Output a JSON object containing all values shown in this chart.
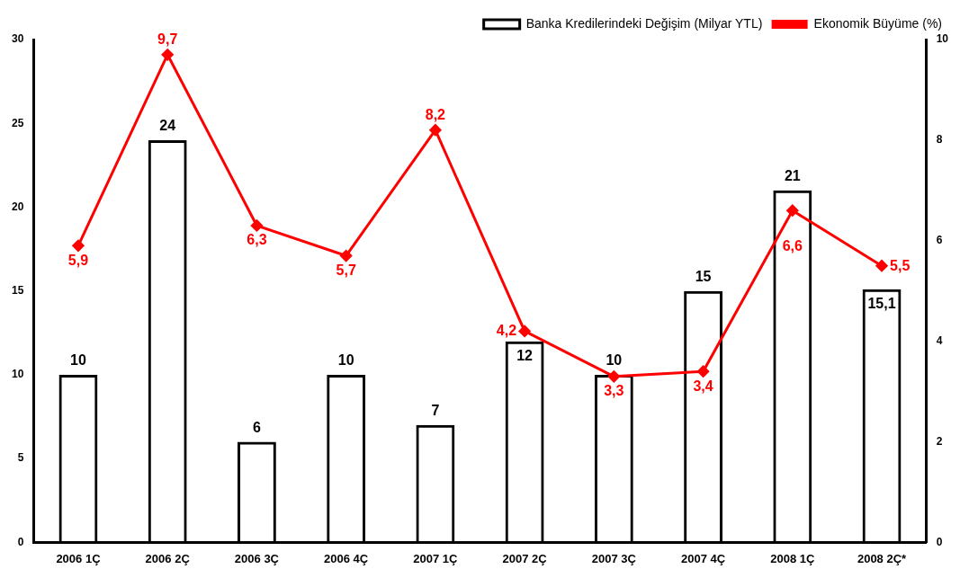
{
  "chart_data": {
    "type": "bar",
    "categories": [
      "2006 1Ç",
      "2006 2Ç",
      "2006 3Ç",
      "2006 4Ç",
      "2007 1Ç",
      "2007 2Ç",
      "2007 3Ç",
      "2007 4Ç",
      "2008 1Ç",
      "2008 2Ç*"
    ],
    "series": [
      {
        "name": "Banka Kredilerindeki Değişim (Milyar YTL)",
        "color": "#000000",
        "values": [
          10,
          24,
          6,
          10,
          7,
          12,
          10,
          15,
          21,
          15.1
        ],
        "value_labels": [
          "10",
          "24",
          "6",
          "10",
          "7",
          "12",
          "10",
          "15",
          "21",
          "15,1"
        ]
      },
      {
        "name": "Ekonomik Büyüme (%)",
        "type": "line",
        "axis": "y2",
        "color": "#ff0000",
        "values": [
          5.9,
          9.7,
          6.3,
          5.7,
          8.2,
          4.2,
          3.3,
          3.4,
          6.6,
          5.5
        ],
        "value_labels": [
          "5,9",
          "9,7",
          "6,3",
          "5,7",
          "8,2",
          "4,2",
          "3,3",
          "3,4",
          "6,6",
          "5,5"
        ]
      }
    ],
    "ylim": [
      0,
      30
    ],
    "yticks": [
      0,
      5,
      10,
      15,
      20,
      25,
      30
    ],
    "y2lim": [
      0,
      10
    ],
    "y2ticks": [
      0,
      2,
      4,
      6,
      8,
      10
    ],
    "grid": false,
    "legend": "top right",
    "marker": "diamond",
    "line_style": "solid"
  }
}
